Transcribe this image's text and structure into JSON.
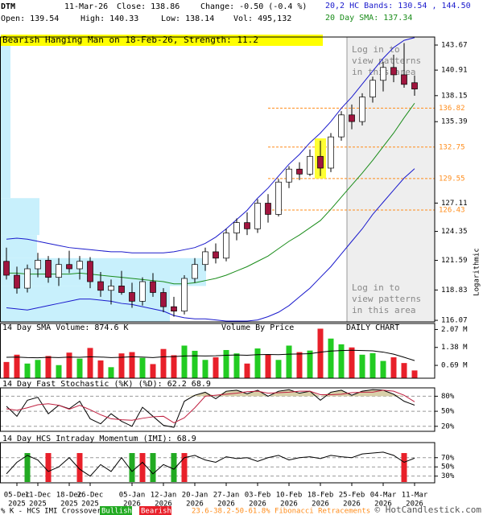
{
  "header": {
    "symbol": "DTM",
    "date": "11-Mar-26",
    "close": "Close: 138.86",
    "change": "Change: -0.50 (-0.4 %)",
    "bands": "20,2 HC Bands: 130.54 , 144.50",
    "open": "Open: 139.54",
    "high": "High: 140.33",
    "low": "Low: 138.14",
    "vol": "Vol: 495,132",
    "sma": "20 Day SMA: 137.34"
  },
  "pattern_label": "Bearish Hanging Man on 18-Feb-26, Strength: 11.2",
  "notice": [
    "Log in to",
    "view patterns",
    "in this area"
  ],
  "footer": {
    "crossover": "% K - HCS IMI Crossover,",
    "bullish": "Bullish",
    "bearish": "Bearish",
    "fib": "23.6-38.2-50-61.8% Fibonacci Retracements",
    "credit": "© HotCandlestick.com"
  },
  "chart_data": [
    {
      "type": "candlestick",
      "axis_label": "Logarithmic",
      "log_scale": true,
      "ylim": [
        115.93,
        144.57
      ],
      "yticks": [
        143.67,
        140.91,
        138.15,
        135.39,
        127.11,
        124.35,
        121.59,
        118.83,
        116.07
      ],
      "xticks": [
        {
          "value": 1,
          "label": "05-Dec",
          "sublabel": "2025"
        },
        {
          "value": 3,
          "label": "11-Dec",
          "sublabel": "2025"
        },
        {
          "value": 6,
          "label": "18-Dec",
          "sublabel": "2025"
        },
        {
          "value": 8,
          "label": "26-Dec",
          "sublabel": "2025"
        },
        {
          "value": 12,
          "label": "05-Jan",
          "sublabel": "2026"
        },
        {
          "value": 15,
          "label": "12-Jan",
          "sublabel": "2026"
        },
        {
          "value": 18,
          "label": "20-Jan",
          "sublabel": "2026"
        },
        {
          "value": 21,
          "label": "27-Jan",
          "sublabel": "2026"
        },
        {
          "value": 24,
          "label": "03-Feb",
          "sublabel": "2026"
        },
        {
          "value": 27,
          "label": "10-Feb",
          "sublabel": "2026"
        },
        {
          "value": 30,
          "label": "18-Feb",
          "sublabel": "2026"
        },
        {
          "value": 33,
          "label": "25-Feb",
          "sublabel": "2026"
        },
        {
          "value": 36,
          "label": "04-Mar",
          "sublabel": "2026"
        },
        {
          "value": 39,
          "label": "11-Mar",
          "sublabel": "2026"
        }
      ],
      "open": [
        121.5,
        120.2,
        119.0,
        120.8,
        121.6,
        120.0,
        121.2,
        120.8,
        121.5,
        119.6,
        118.8,
        119.2,
        118.6,
        117.8,
        119.6,
        118.6,
        117.3,
        116.9,
        119.9,
        121.2,
        122.4,
        121.8,
        124.2,
        125.2,
        124.6,
        127.1,
        126.0,
        129.2,
        130.5,
        130.0,
        131.8,
        130.6,
        133.8,
        136.1,
        135.4,
        138.0,
        139.8,
        141.2,
        140.4,
        139.54
      ],
      "high": [
        122.8,
        121.0,
        121.2,
        122.3,
        122.0,
        121.8,
        122.5,
        122.0,
        121.9,
        120.5,
        119.8,
        120.6,
        119.5,
        120.0,
        120.4,
        119.0,
        118.2,
        120.2,
        121.8,
        122.8,
        123.2,
        124.6,
        125.6,
        126.2,
        127.5,
        128.0,
        129.5,
        130.8,
        131.2,
        132.5,
        133.4,
        134.2,
        136.5,
        137.2,
        138.4,
        140.2,
        141.8,
        142.6,
        143.9,
        140.33
      ],
      "low": [
        119.8,
        118.5,
        118.6,
        120.0,
        119.5,
        119.2,
        120.4,
        119.8,
        119.0,
        118.2,
        117.5,
        118.4,
        117.2,
        117.4,
        118.2,
        116.8,
        116.4,
        116.6,
        119.5,
        120.6,
        121.3,
        121.5,
        123.5,
        124.0,
        124.2,
        125.2,
        125.8,
        128.6,
        129.4,
        129.8,
        129.8,
        130.2,
        133.4,
        134.6,
        135.0,
        137.4,
        138.6,
        139.6,
        139.0,
        138.14
      ],
      "close": [
        120.2,
        119.0,
        120.8,
        121.6,
        120.0,
        121.2,
        120.8,
        121.5,
        119.6,
        118.8,
        119.2,
        118.6,
        117.8,
        119.6,
        118.6,
        117.3,
        116.9,
        119.9,
        121.2,
        122.4,
        121.8,
        124.2,
        125.2,
        124.6,
        127.1,
        126.0,
        129.2,
        130.5,
        130.0,
        131.8,
        130.6,
        133.8,
        136.1,
        135.4,
        138.0,
        139.8,
        141.2,
        140.4,
        139.36,
        138.86
      ],
      "up_color": "#ffffff",
      "down_color": "#a0153e",
      "highlight_index": 30,
      "highlight_color": "#ffff33",
      "shade_from_index": 33,
      "bands": [
        {
          "name": "upper",
          "color": "#1a1acc",
          "values": [
            123.6,
            123.7,
            123.6,
            123.4,
            123.2,
            123.0,
            122.8,
            122.7,
            122.6,
            122.5,
            122.4,
            122.4,
            122.3,
            122.3,
            122.3,
            122.3,
            122.4,
            122.6,
            122.8,
            123.2,
            123.8,
            124.6,
            125.5,
            126.4,
            127.6,
            128.6,
            129.8,
            131.0,
            132.0,
            133.2,
            134.2,
            135.4,
            136.8,
            138.0,
            139.4,
            140.8,
            142.2,
            143.4,
            144.2,
            144.5
          ]
        },
        {
          "name": "sma",
          "color": "#1a8c1a",
          "values": [
            120.4,
            120.4,
            120.3,
            120.3,
            120.3,
            120.3,
            120.3,
            120.4,
            120.3,
            120.2,
            120.1,
            120.0,
            119.9,
            119.8,
            119.7,
            119.6,
            119.4,
            119.4,
            119.5,
            119.7,
            119.9,
            120.2,
            120.6,
            121.0,
            121.5,
            122.0,
            122.7,
            123.4,
            124.0,
            124.7,
            125.4,
            126.5,
            127.7,
            128.9,
            130.1,
            131.4,
            132.8,
            134.2,
            135.8,
            137.34
          ]
        },
        {
          "name": "lower",
          "color": "#1a1acc",
          "values": [
            117.2,
            117.1,
            117.0,
            117.2,
            117.4,
            117.6,
            117.8,
            118.0,
            118.0,
            117.9,
            117.8,
            117.6,
            117.5,
            117.3,
            117.1,
            116.9,
            116.5,
            116.3,
            116.2,
            116.2,
            116.1,
            116.0,
            116.0,
            116.0,
            116.1,
            116.4,
            116.8,
            117.4,
            118.2,
            119.0,
            120.0,
            121.0,
            122.2,
            123.4,
            124.6,
            126.0,
            127.2,
            128.4,
            129.6,
            130.54
          ]
        }
      ],
      "fib_levels": [
        136.82,
        132.75,
        129.55,
        126.43
      ],
      "fib_from_index": 25,
      "fib_color": "#ff8c1a",
      "volume_by_price": {
        "title": "Volume By Price",
        "edges": [
          115.93,
          119.2,
          121.8,
          124.0,
          127.6,
          144.57
        ],
        "values": [
          210,
          255,
          45,
          48,
          12
        ],
        "xlim": [
          0,
          600
        ],
        "color": "#c8f0fc"
      }
    },
    {
      "type": "volume",
      "title": "14 Day SMA Volume: 874.6 K",
      "note": "DAILY CHART",
      "ylim": [
        197000,
        2300000
      ],
      "yticks": [
        {
          "value": 2070000,
          "label": "2.07 M"
        },
        {
          "value": 1380000,
          "label": "1.38 M"
        },
        {
          "value": 690000,
          "label": "0.69 M"
        }
      ],
      "values": [
        820000,
        1100000,
        760000,
        900000,
        1050000,
        700000,
        1180000,
        950000,
        1360000,
        880000,
        620000,
        1150000,
        1200000,
        980000,
        740000,
        1320000,
        1080000,
        1450000,
        1250000,
        900000,
        1000000,
        1280000,
        1150000,
        760000,
        1340000,
        1100000,
        900000,
        1450000,
        1200000,
        1260000,
        2100000,
        1720000,
        1500000,
        1380000,
        1100000,
        1160000,
        860000,
        1000000,
        780000,
        495132
      ],
      "up_color": "#22cc22",
      "down_color": "#e8202a",
      "sma": [
        1000000,
        1010000,
        990000,
        980000,
        1000000,
        990000,
        1010000,
        1000000,
        1020000,
        1010000,
        990000,
        1000000,
        1020000,
        1010000,
        990000,
        1020000,
        1030000,
        1050000,
        1060000,
        1050000,
        1060000,
        1080000,
        1090000,
        1080000,
        1100000,
        1110000,
        1100000,
        1120000,
        1130000,
        1140000,
        1200000,
        1240000,
        1260000,
        1270000,
        1260000,
        1250000,
        1200000,
        1120000,
        1000000,
        874600
      ]
    },
    {
      "type": "line",
      "title": "14 Day Fast Stochastic (%K) (%D): 62.2  68.9",
      "ylim": [
        10,
        96.7
      ],
      "yticks": [
        {
          "value": 80,
          "label": "80%"
        },
        {
          "value": 50,
          "label": "50%"
        },
        {
          "value": 20,
          "label": "20%"
        }
      ],
      "shade_above": 80,
      "shade_color": "#d8cfa8",
      "series": [
        {
          "name": "%K",
          "color": "#000000",
          "values": [
            60,
            40,
            72,
            78,
            45,
            62,
            55,
            70,
            35,
            25,
            45,
            30,
            20,
            58,
            40,
            22,
            18,
            70,
            82,
            88,
            75,
            90,
            92,
            85,
            92,
            80,
            90,
            93,
            86,
            90,
            72,
            88,
            92,
            82,
            90,
            93,
            92,
            84,
            70,
            62.2
          ]
        },
        {
          "name": "%D",
          "color": "#c02040",
          "values": [
            55,
            52,
            57,
            63,
            65,
            62,
            54,
            62,
            53,
            43,
            35,
            33,
            32,
            36,
            39,
            40,
            27,
            37,
            57,
            80,
            82,
            84,
            86,
            89,
            90,
            86,
            87,
            88,
            90,
            90,
            83,
            83,
            84,
            87,
            88,
            88,
            92,
            90,
            82,
            68.9
          ]
        }
      ]
    },
    {
      "type": "line",
      "title": "14 Day HCS Intraday Momentum (IMI): 68.9",
      "ylim": [
        15.5,
        102.7
      ],
      "yticks": [
        {
          "value": 70,
          "label": "70%"
        },
        {
          "value": 50,
          "label": "50%"
        },
        {
          "value": 30,
          "label": "30%"
        }
      ],
      "series": [
        {
          "name": "IMI",
          "color": "#000000",
          "values": [
            35,
            60,
            75,
            65,
            40,
            50,
            70,
            45,
            30,
            55,
            40,
            70,
            40,
            60,
            35,
            55,
            45,
            70,
            75,
            65,
            60,
            72,
            68,
            70,
            62,
            70,
            75,
            65,
            70,
            72,
            68,
            75,
            72,
            70,
            78,
            80,
            82,
            75,
            60,
            68.9
          ]
        }
      ],
      "crossovers": [
        {
          "index": 2,
          "signal": "Bullish"
        },
        {
          "index": 4,
          "signal": "Bearish"
        },
        {
          "index": 7,
          "signal": "Bearish"
        },
        {
          "index": 12,
          "signal": "Bullish"
        },
        {
          "index": 13,
          "signal": "Bearish"
        },
        {
          "index": 14,
          "signal": "Bullish"
        },
        {
          "index": 16,
          "signal": "Bullish"
        },
        {
          "index": 17,
          "signal": "Bearish"
        },
        {
          "index": 38,
          "signal": "Bearish"
        }
      ],
      "signal_colors": {
        "Bullish": "#22aa22",
        "Bearish": "#e8202a"
      }
    }
  ]
}
